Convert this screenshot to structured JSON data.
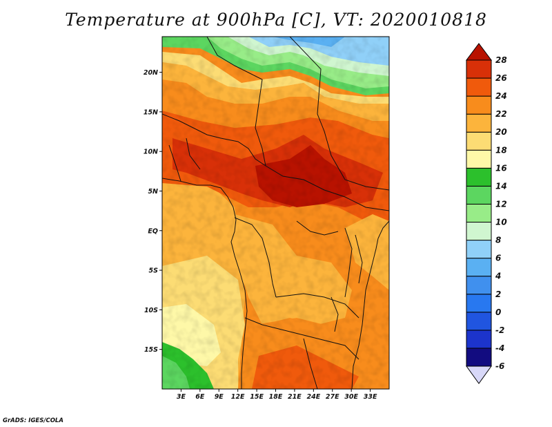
{
  "title": "Temperature at 900hPa [C], VT: 2020010818",
  "footer": "GrADS: IGES/COLA",
  "map": {
    "lon_range": [
      0,
      36
    ],
    "lat_range": [
      -20,
      24.5
    ],
    "lon_ticks": [
      {
        "value": 3,
        "label": "3E"
      },
      {
        "value": 6,
        "label": "6E"
      },
      {
        "value": 9,
        "label": "9E"
      },
      {
        "value": 12,
        "label": "12E"
      },
      {
        "value": 15,
        "label": "15E"
      },
      {
        "value": 18,
        "label": "18E"
      },
      {
        "value": 21,
        "label": "21E"
      },
      {
        "value": 24,
        "label": "24E"
      },
      {
        "value": 27,
        "label": "27E"
      },
      {
        "value": 30,
        "label": "30E"
      },
      {
        "value": 33,
        "label": "33E"
      }
    ],
    "lat_ticks": [
      {
        "value": 20,
        "label": "20N"
      },
      {
        "value": 15,
        "label": "15N"
      },
      {
        "value": 10,
        "label": "10N"
      },
      {
        "value": 5,
        "label": "5N"
      },
      {
        "value": 0,
        "label": "EQ"
      },
      {
        "value": -5,
        "label": "5S"
      },
      {
        "value": -10,
        "label": "10S"
      },
      {
        "value": -15,
        "label": "15S"
      }
    ]
  },
  "colorbar": {
    "levels": [
      {
        "value": -6,
        "label": "-6"
      },
      {
        "value": -4,
        "label": "-4"
      },
      {
        "value": -2,
        "label": "-2"
      },
      {
        "value": 0,
        "label": "0"
      },
      {
        "value": 2,
        "label": "2"
      },
      {
        "value": 4,
        "label": "4"
      },
      {
        "value": 6,
        "label": "6"
      },
      {
        "value": 8,
        "label": "8"
      },
      {
        "value": 10,
        "label": "10"
      },
      {
        "value": 12,
        "label": "12"
      },
      {
        "value": 14,
        "label": "14"
      },
      {
        "value": 16,
        "label": "16"
      },
      {
        "value": 18,
        "label": "18"
      },
      {
        "value": 20,
        "label": "20"
      },
      {
        "value": 22,
        "label": "22"
      },
      {
        "value": 24,
        "label": "24"
      },
      {
        "value": 26,
        "label": "26"
      },
      {
        "value": 28,
        "label": "28"
      }
    ],
    "colors": [
      "#d8d8f8",
      "#120c80",
      "#1c34cc",
      "#2055e0",
      "#2878f0",
      "#4090ee",
      "#5ab0f2",
      "#90d0f8",
      "#d0f6d0",
      "#98ec88",
      "#5cd660",
      "#2cc02c",
      "#fef8a8",
      "#fcdc74",
      "#fcb43c",
      "#f88c1c",
      "#f05a0c",
      "#d83008",
      "#b81200"
    ]
  }
}
